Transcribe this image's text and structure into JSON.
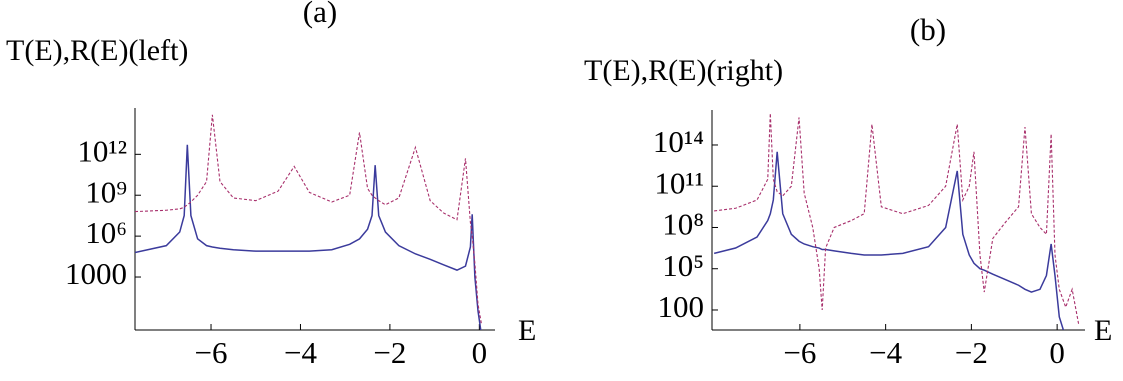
{
  "chart_data": [
    {
      "type": "line",
      "title": "(a)",
      "ylabel": "T(E),R(E)(left)",
      "xlabel": "E",
      "log_y": true,
      "xlim": [
        -7.7,
        0.35
      ],
      "ylim": [
        0.13,
        2500000000000000.0
      ],
      "xticks": [
        {
          "value": -6,
          "label": "−6"
        },
        {
          "value": -4,
          "label": "−4"
        },
        {
          "value": -2,
          "label": "−2"
        },
        0
      ],
      "yticks": [
        1000,
        {
          "value": 1000000.0,
          "label": "10⁶"
        },
        {
          "value": 1000000000.0,
          "label": "10⁹"
        },
        {
          "value": 1000000000000.0,
          "label": "10¹²"
        }
      ],
      "x": [
        -7.7,
        -7,
        -6.7,
        -6.6,
        -6.53,
        -6.45,
        -6.3,
        -6.1,
        -5.97,
        -5.8,
        -5.5,
        -5,
        -4.5,
        -4.14,
        -3.8,
        -3.3,
        -2.9,
        -2.68,
        -2.5,
        -2.4,
        -2.33,
        -2.25,
        -2.1,
        -1.8,
        -1.43,
        -1.1,
        -0.8,
        -0.5,
        -0.31,
        -0.2,
        -0.16,
        -0.1,
        -0.03,
        0.05
      ],
      "series": [
        {
          "color": "#3b3b9c",
          "style": "solid",
          "values": [
            63000.0,
            200000.0,
            2000000.0,
            32000000.0,
            5000000000000.0,
            32000000.0,
            630000.0,
            200000.0,
            160000.0,
            130000.0,
            100000.0,
            79000.0,
            79000.0,
            79000.0,
            79000.0,
            100000.0,
            250000.0,
            630000.0,
            3200000.0,
            32000000.0,
            160000000000.0,
            32000000.0,
            2000000.0,
            200000.0,
            50000.0,
            20000.0,
            7900.0,
            3200.0,
            6300.0,
            160000.0,
            40000000.0,
            1000.0,
            3.2,
            0.05
          ]
        },
        {
          "color": "#a8306c",
          "style": "dashed",
          "values": [
            63000000.0,
            79000000.0,
            100000000.0,
            130000000.0,
            200000000.0,
            320000000.0,
            1000000000.0,
            10000000000.0,
            790000000000000.0,
            10000000000.0,
            630000000.0,
            400000000.0,
            2000000000.0,
            130000000000.0,
            1600000000.0,
            320000000.0,
            1000000000.0,
            40000000000000.0,
            3200000000.0,
            1000000000.0,
            630000000.0,
            400000000.0,
            200000000.0,
            630000000.0,
            3200000000000.0,
            400000000.0,
            50000000.0,
            16000000.0,
            500000000000.0,
            10000000.0,
            1000000.0,
            10000.0,
            10,
            0.32
          ]
        }
      ]
    },
    {
      "type": "line",
      "title": "(b)",
      "ylabel": "T(E),R(E)(right)",
      "xlabel": "E",
      "log_y": true,
      "xlim": [
        -8.05,
        0.65
      ],
      "ylim": [
        3.5,
        3.5e+16
      ],
      "xticks": [
        {
          "value": -6,
          "label": "−6"
        },
        {
          "value": -4,
          "label": "−4"
        },
        {
          "value": -2,
          "label": "−2"
        },
        0
      ],
      "yticks": [
        100,
        {
          "value": 100000.0,
          "label": "10⁵"
        },
        {
          "value": 100000000.0,
          "label": "10⁸"
        },
        {
          "value": 100000000000.0,
          "label": "10¹¹"
        },
        {
          "value": 100000000000000.0,
          "label": "10¹⁴"
        }
      ],
      "x": [
        -8.0,
        -7.5,
        -7.0,
        -6.75,
        -6.69,
        -6.62,
        -6.53,
        -6.4,
        -6.2,
        -6.02,
        -5.9,
        -5.7,
        -5.55,
        -5.48,
        -5.4,
        -5.2,
        -4.8,
        -4.5,
        -4.32,
        -4.1,
        -3.6,
        -3.0,
        -2.6,
        -2.33,
        -2.2,
        -2.05,
        -1.94,
        -1.8,
        -1.7,
        -1.5,
        -1.2,
        -0.9,
        -0.75,
        -0.6,
        -0.4,
        -0.25,
        -0.14,
        -0.05,
        0.05,
        0.2,
        0.35,
        0.5
      ],
      "series": [
        {
          "color": "#3b3b9c",
          "style": "solid",
          "values": [
            1300000.0,
            3200000.0,
            20000000.0,
            320000000.0,
            1000000000.0,
            10000000000.0,
            32000000000000.0,
            1000000000.0,
            32000000.0,
            10000000.0,
            6300000.0,
            4000000.0,
            3200000.0,
            2500000.0,
            2500000.0,
            2000000.0,
            1300000.0,
            1000000.0,
            1000000.0,
            1000000.0,
            1300000.0,
            4000000.0,
            100000000.0,
            1300000000000.0,
            32000000.0,
            1000000.0,
            250000.0,
            100000.0,
            79000.0,
            40000.0,
            16000.0,
            6300,
            3200,
            2000,
            3200,
            32000.0,
            6300000.0,
            32000.0,
            32,
            1,
            null,
            null
          ]
        },
        {
          "color": "#a8306c",
          "style": "dashed",
          "values": [
            1600000000.0,
            2500000000.0,
            10000000000.0,
            320000000000.0,
            2e+16,
            320000000000.0,
            40000000000.0,
            20000000000.0,
            100000000000.0,
            1e+16,
            32000000000.0,
            100000000.0,
            100000.0,
            100,
            3200000.0,
            100000000.0,
            320000000.0,
            1000000000.0,
            3200000000000000.0,
            3200000000.0,
            1000000000.0,
            4000000000.0,
            100000000000.0,
            3200000000000000.0,
            10000000000.0,
            100000000000.0,
            32000000000000.0,
            1000000.0,
            2000,
            16000000.0,
            250000000.0,
            3200000000.0,
            2000000000000000.0,
            1000000000.0,
            100000000.0,
            32000000.0,
            630000000000000.0,
            1000000.0,
            3200,
            160,
            3200,
            10
          ]
        }
      ]
    }
  ]
}
